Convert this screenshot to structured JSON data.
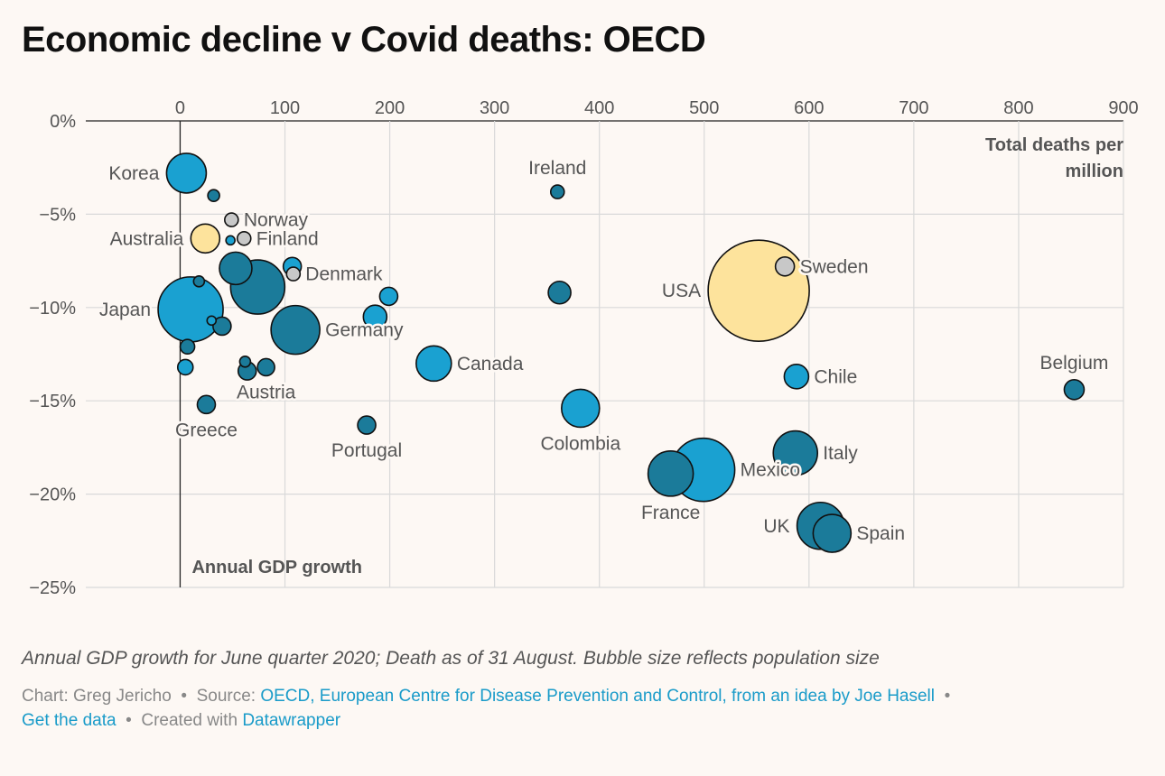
{
  "title": "Economic decline v Covid deaths: OECD",
  "notes": "Annual GDP growth for June quarter 2020; Death as of 31 August. Bubble size reflects population size",
  "footer": {
    "chart_by": "Chart: Greg Jericho",
    "source_prefix": "Source:",
    "source_link": "OECD, European Centre for Disease Prevention and Control, from an idea by Joe Hasell",
    "get_data": "Get the data",
    "created_with_prefix": "Created with",
    "created_with_link": "Datawrapper"
  },
  "colors": {
    "background": "#fdf8f4",
    "light_blue": "#1aa1d1",
    "dark_blue": "#1b7b9a",
    "yellow": "#fde39c",
    "grey": "#c8c8c8",
    "grid": "#d9d9d9",
    "link": "#1a9bc9"
  },
  "chart_data": {
    "type": "scatter",
    "xlabel": "Total deaths per million",
    "ylabel": "Annual GDP growth",
    "xlim": [
      -90,
      900
    ],
    "ylim": [
      -25,
      0
    ],
    "x_ticks": [
      0,
      100,
      200,
      300,
      400,
      500,
      600,
      700,
      800,
      900
    ],
    "x_tick_labels": [
      "0",
      "100",
      "200",
      "300",
      "400",
      "500",
      "600",
      "700",
      "800",
      "900"
    ],
    "y_ticks": [
      0,
      -5,
      -10,
      -15,
      -20,
      -25
    ],
    "y_tick_labels": [
      "0%",
      "−5%",
      "−10%",
      "−15%",
      "−20%",
      "−25%"
    ],
    "grid": true,
    "x_axis_position": "top",
    "points": [
      {
        "label": "Korea",
        "x": 6,
        "y": -2.8,
        "size": 22,
        "color": "light",
        "label_pos": "left"
      },
      {
        "label": "",
        "x": 32,
        "y": -4.0,
        "size": 6.5,
        "color": "dark",
        "label_pos": "none"
      },
      {
        "label": "Norway",
        "x": 49,
        "y": -5.3,
        "size": 7.5,
        "color": "grey",
        "label_pos": "right"
      },
      {
        "label": "Finland",
        "x": 61,
        "y": -6.3,
        "size": 7.5,
        "color": "grey",
        "label_pos": "right"
      },
      {
        "label": "",
        "x": 48,
        "y": -6.4,
        "size": 5,
        "color": "light",
        "label_pos": "none"
      },
      {
        "label": "Australia",
        "x": 24,
        "y": -6.3,
        "size": 16,
        "color": "yellow",
        "label_pos": "left"
      },
      {
        "label": "",
        "x": 53,
        "y": -7.9,
        "size": 18,
        "color": "dark",
        "label_pos": "none"
      },
      {
        "label": "",
        "x": 107,
        "y": -7.8,
        "size": 10,
        "color": "light",
        "label_pos": "none"
      },
      {
        "label": "Denmark",
        "x": 108,
        "y": -8.2,
        "size": 7.5,
        "color": "grey",
        "label_pos": "right"
      },
      {
        "label": "",
        "x": 74,
        "y": -8.9,
        "size": 30,
        "color": "dark",
        "label_pos": "none"
      },
      {
        "label": "",
        "x": 18,
        "y": -8.6,
        "size": 6,
        "color": "dark",
        "label_pos": "none"
      },
      {
        "label": "",
        "x": 199,
        "y": -9.4,
        "size": 10,
        "color": "light",
        "label_pos": "none"
      },
      {
        "label": "",
        "x": 362,
        "y": -9.2,
        "size": 12.5,
        "color": "dark",
        "label_pos": "none"
      },
      {
        "label": "Japan",
        "x": 10,
        "y": -10.1,
        "size": 36,
        "color": "light",
        "label_pos": "left"
      },
      {
        "label": "",
        "x": 186,
        "y": -10.5,
        "size": 13,
        "color": "light",
        "label_pos": "none"
      },
      {
        "label": "Germany",
        "x": 110,
        "y": -11.2,
        "size": 27,
        "color": "dark",
        "label_pos": "right"
      },
      {
        "label": "",
        "x": 40,
        "y": -11.0,
        "size": 10,
        "color": "dark",
        "label_pos": "none"
      },
      {
        "label": "",
        "x": 30,
        "y": -10.7,
        "size": 5,
        "color": "light",
        "label_pos": "none"
      },
      {
        "label": "",
        "x": 7,
        "y": -12.1,
        "size": 8,
        "color": "dark",
        "label_pos": "none"
      },
      {
        "label": "",
        "x": 5,
        "y": -13.2,
        "size": 8.5,
        "color": "light",
        "label_pos": "none"
      },
      {
        "label": "",
        "x": 62,
        "y": -12.9,
        "size": 6,
        "color": "dark",
        "label_pos": "none"
      },
      {
        "label": "Austria",
        "x": 82,
        "y": -13.2,
        "size": 9.5,
        "color": "dark",
        "label_pos": "below"
      },
      {
        "label": "",
        "x": 64,
        "y": -13.4,
        "size": 10,
        "color": "dark",
        "label_pos": "none"
      },
      {
        "label": "Canada",
        "x": 242,
        "y": -13.0,
        "size": 19.5,
        "color": "light",
        "label_pos": "right"
      },
      {
        "label": "Greece",
        "x": 25,
        "y": -15.2,
        "size": 10,
        "color": "dark",
        "label_pos": "below"
      },
      {
        "label": "Portugal",
        "x": 178,
        "y": -16.3,
        "size": 10,
        "color": "dark",
        "label_pos": "below"
      },
      {
        "label": "Ireland",
        "x": 360,
        "y": -3.8,
        "size": 7.5,
        "color": "dark",
        "label_pos": "above"
      },
      {
        "label": "Colombia",
        "x": 382,
        "y": -15.4,
        "size": 21,
        "color": "light",
        "label_pos": "below"
      },
      {
        "label": "USA",
        "x": 552,
        "y": -9.1,
        "size": 56,
        "color": "yellow",
        "label_pos": "left"
      },
      {
        "label": "Sweden",
        "x": 577,
        "y": -7.8,
        "size": 10.5,
        "color": "grey",
        "label_pos": "right"
      },
      {
        "label": "Chile",
        "x": 588,
        "y": -13.7,
        "size": 13.5,
        "color": "light",
        "label_pos": "right"
      },
      {
        "label": "Italy",
        "x": 587,
        "y": -17.8,
        "size": 24.5,
        "color": "dark",
        "label_pos": "right"
      },
      {
        "label": "Mexico",
        "x": 499,
        "y": -18.7,
        "size": 35,
        "color": "light",
        "label_pos": "right"
      },
      {
        "label": "France",
        "x": 468,
        "y": -18.9,
        "size": 25,
        "color": "dark",
        "label_pos": "below"
      },
      {
        "label": "UK",
        "x": 611,
        "y": -21.7,
        "size": 26,
        "color": "dark",
        "label_pos": "left"
      },
      {
        "label": "Spain",
        "x": 622,
        "y": -22.1,
        "size": 21,
        "color": "dark",
        "label_pos": "right"
      },
      {
        "label": "Belgium",
        "x": 853,
        "y": -14.4,
        "size": 11,
        "color": "dark",
        "label_pos": "above"
      }
    ]
  }
}
